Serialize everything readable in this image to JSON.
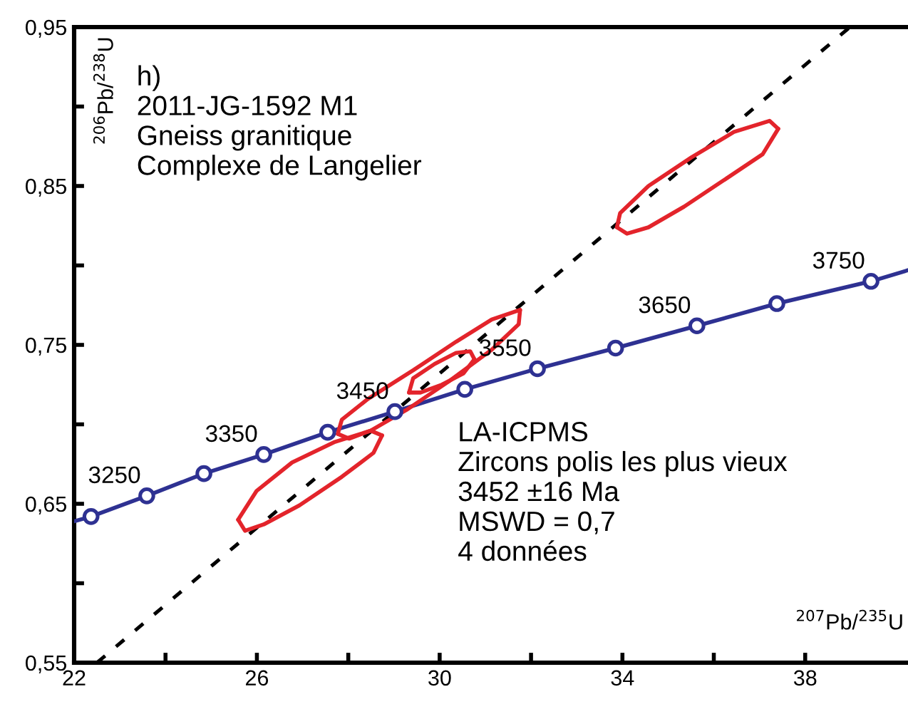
{
  "chart_data": {
    "type": "line",
    "xlabel": "$^{207}$Pb/$^{235}$U",
    "ylabel": "$^{206}$Pb/$^{238}$U",
    "xlim": [
      22,
      40.25
    ],
    "ylim": [
      0.55,
      0.95
    ],
    "xticks": [
      {
        "value": 22,
        "label": "22"
      },
      {
        "value": 24,
        "label": null
      },
      {
        "value": 26,
        "label": "26"
      },
      {
        "value": 28,
        "label": null
      },
      {
        "value": 30,
        "label": "30"
      },
      {
        "value": 32,
        "label": null
      },
      {
        "value": 34,
        "label": "34"
      },
      {
        "value": 36,
        "label": null
      },
      {
        "value": 38,
        "label": "38"
      }
    ],
    "yticks": [
      {
        "value": 0.55,
        "label": "0,55"
      },
      {
        "value": 0.6,
        "label": null
      },
      {
        "value": 0.65,
        "label": "0,65"
      },
      {
        "value": 0.7,
        "label": null
      },
      {
        "value": 0.75,
        "label": "0,75"
      },
      {
        "value": 0.8,
        "label": null
      },
      {
        "value": 0.85,
        "label": "0,85"
      },
      {
        "value": 0.9,
        "label": null
      },
      {
        "value": 0.95,
        "label": "0,95"
      }
    ],
    "grid": false,
    "legend": false,
    "series": [
      {
        "color": "#2e3192",
        "marker": "none",
        "line_style": "solid",
        "x": [
          22,
          22.37,
          23.59,
          24.84,
          26.15,
          27.55,
          29.02,
          30.55,
          32.14,
          33.85,
          35.63,
          37.38,
          39.44,
          40.25
        ],
        "values": [
          0.639,
          0.642,
          0.655,
          0.669,
          0.681,
          0.695,
          0.708,
          0.722,
          0.735,
          0.748,
          0.762,
          0.776,
          0.79,
          0.797
        ]
      },
      {
        "type": "scatter",
        "color": "#2e3192",
        "marker": "circle",
        "x": [
          22.37,
          23.59,
          24.84,
          26.15,
          27.55,
          29.02,
          30.55,
          32.14,
          33.85,
          35.63,
          37.38,
          39.44
        ],
        "values": [
          0.642,
          0.655,
          0.669,
          0.681,
          0.695,
          0.708,
          0.722,
          0.735,
          0.748,
          0.762,
          0.776,
          0.79
        ]
      },
      {
        "type": "line",
        "color": "#000000",
        "marker": "none",
        "line_style": "dashed",
        "x": [
          22.5,
          38.98
        ],
        "values": [
          0.55,
          0.95
        ]
      },
      {
        "type": "line",
        "color": "#e3242b",
        "marker": "none",
        "line_style": "solid",
        "x": [
          25.59,
          25.99,
          26.77,
          27.71,
          28.49,
          28.74
        ],
        "values": [
          0.64,
          0.658,
          0.676,
          0.689,
          0.696,
          0.693
        ]
      },
      {
        "type": "line",
        "color": "#e3242b",
        "marker": "none",
        "line_style": "solid",
        "x": [
          25.59,
          25.74,
          26.15,
          26.93,
          27.86,
          28.55,
          28.74
        ],
        "values": [
          0.64,
          0.633,
          0.637,
          0.649,
          0.667,
          0.682,
          0.693
        ]
      },
      {
        "type": "line",
        "color": "#e3242b",
        "marker": "none",
        "line_style": "solid",
        "x": [
          27.77,
          27.86,
          28.43,
          29.42,
          30.36,
          31.14,
          31.76
        ],
        "values": [
          0.694,
          0.703,
          0.716,
          0.734,
          0.752,
          0.766,
          0.772
        ]
      },
      {
        "type": "line",
        "color": "#e3242b",
        "marker": "none",
        "line_style": "solid",
        "x": [
          27.77,
          28.02,
          28.49,
          29.27,
          30.2,
          31.14,
          31.73,
          31.76
        ],
        "values": [
          0.694,
          0.691,
          0.696,
          0.709,
          0.727,
          0.747,
          0.763,
          0.772
        ]
      },
      {
        "type": "line",
        "color": "#e3242b",
        "marker": "none",
        "line_style": "solid",
        "x": [
          29.33,
          29.42,
          29.89,
          30.36,
          30.67,
          30.76
        ],
        "values": [
          0.72,
          0.729,
          0.738,
          0.745,
          0.746,
          0.741
        ]
      },
      {
        "type": "line",
        "color": "#e3242b",
        "marker": "none",
        "line_style": "solid",
        "x": [
          29.33,
          29.58,
          30.05,
          30.52,
          30.76
        ],
        "values": [
          0.72,
          0.72,
          0.725,
          0.732,
          0.741
        ]
      },
      {
        "type": "line",
        "color": "#e3242b",
        "marker": "none",
        "line_style": "solid",
        "x": [
          33.88,
          33.95,
          34.57,
          35.51,
          36.44,
          37.22,
          37.41
        ],
        "values": [
          0.824,
          0.833,
          0.85,
          0.868,
          0.884,
          0.891,
          0.886
        ]
      },
      {
        "type": "line",
        "color": "#e3242b",
        "marker": "none",
        "line_style": "solid",
        "x": [
          33.88,
          34.1,
          34.57,
          35.35,
          36.29,
          37.07,
          37.41
        ],
        "values": [
          0.824,
          0.82,
          0.824,
          0.837,
          0.855,
          0.87,
          0.886
        ]
      }
    ],
    "annotations": [
      "h)\n2011-JG-1592 M1\nGneiss granitique\nComplexe de Langelier",
      "LA-ICPMS\nZircons polis les plus vieux\n3452 ±16 Ma\nMSWD = 0,7\n4 données",
      {
        "text": "3250",
        "x": 23.59,
        "y": 0.655
      },
      {
        "text": "3350",
        "x": 26.15,
        "y": 0.681
      },
      {
        "text": "3450",
        "x": 29.02,
        "y": 0.708
      },
      {
        "text": "3550",
        "x": 32.14,
        "y": 0.735
      },
      {
        "text": "3650",
        "x": 35.63,
        "y": 0.762
      },
      {
        "text": "3750",
        "x": 39.44,
        "y": 0.79
      }
    ]
  }
}
